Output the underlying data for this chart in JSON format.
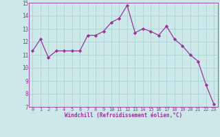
{
  "x": [
    0,
    1,
    2,
    3,
    4,
    5,
    6,
    7,
    8,
    9,
    10,
    11,
    12,
    13,
    14,
    15,
    16,
    17,
    18,
    19,
    20,
    21,
    22,
    23
  ],
  "y": [
    11.3,
    12.2,
    10.8,
    11.3,
    11.3,
    11.3,
    11.3,
    12.5,
    12.5,
    12.8,
    13.5,
    13.8,
    14.8,
    12.7,
    13.0,
    12.8,
    12.5,
    13.2,
    12.2,
    11.7,
    11.0,
    10.5,
    8.7,
    7.2
  ],
  "line_color": "#993399",
  "marker": "D",
  "marker_size": 2.2,
  "bg_color": "#cce8e8",
  "grid_color": "#aad4d4",
  "xlabel": "Windchill (Refroidissement éolien,°C)",
  "xlabel_color": "#993399",
  "tick_color": "#993399",
  "ylim": [
    7,
    15
  ],
  "xlim": [
    -0.5,
    23.5
  ],
  "yticks": [
    7,
    8,
    9,
    10,
    11,
    12,
    13,
    14,
    15
  ],
  "xticks": [
    0,
    1,
    2,
    3,
    4,
    5,
    6,
    7,
    8,
    9,
    10,
    11,
    12,
    13,
    14,
    15,
    16,
    17,
    18,
    19,
    20,
    21,
    22,
    23
  ],
  "xtick_labels": [
    "0",
    "1",
    "2",
    "3",
    "4",
    "5",
    "6",
    "7",
    "8",
    "9",
    "10",
    "11",
    "12",
    "13",
    "14",
    "15",
    "16",
    "17",
    "18",
    "19",
    "20",
    "21",
    "22",
    "23"
  ]
}
